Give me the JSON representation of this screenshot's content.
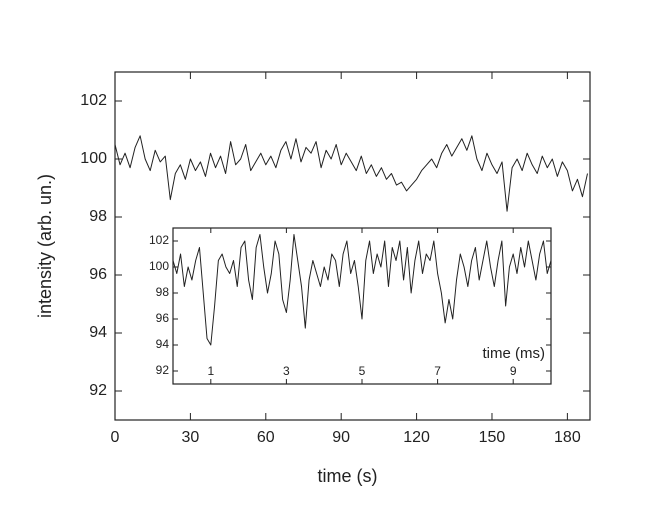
{
  "chart_data": [
    {
      "type": "line",
      "xlabel": "time (s)",
      "ylabel": "intensity (arb. un.)",
      "color": "#222222",
      "x": [
        0,
        2,
        4,
        6,
        8,
        10,
        12,
        14,
        16,
        18,
        20,
        22,
        24,
        26,
        28,
        30,
        32,
        34,
        36,
        38,
        40,
        42,
        44,
        46,
        48,
        50,
        52,
        54,
        56,
        58,
        60,
        62,
        64,
        66,
        68,
        70,
        72,
        74,
        76,
        78,
        80,
        82,
        84,
        86,
        88,
        90,
        92,
        94,
        96,
        98,
        100,
        102,
        104,
        106,
        108,
        110,
        112,
        114,
        116,
        118,
        120,
        122,
        124,
        126,
        128,
        130,
        132,
        134,
        136,
        138,
        140,
        142,
        144,
        146,
        148,
        150,
        152,
        154,
        156,
        158,
        160,
        162,
        164,
        166,
        168,
        170,
        172,
        174,
        176,
        178,
        180,
        182,
        184,
        186,
        188
      ],
      "values": [
        100.5,
        99.8,
        100.2,
        99.7,
        100.4,
        100.8,
        100.0,
        99.6,
        100.3,
        99.9,
        100.1,
        98.6,
        99.5,
        99.8,
        99.3,
        100.0,
        99.6,
        99.9,
        99.4,
        100.2,
        99.7,
        100.1,
        99.5,
        100.6,
        99.8,
        100.0,
        100.5,
        99.6,
        99.9,
        100.2,
        99.8,
        100.1,
        99.7,
        100.3,
        100.6,
        100.0,
        100.7,
        99.9,
        100.4,
        100.2,
        100.6,
        99.7,
        100.3,
        100.0,
        100.5,
        99.8,
        100.2,
        99.9,
        99.6,
        100.1,
        99.5,
        99.8,
        99.4,
        99.7,
        99.3,
        99.5,
        99.1,
        99.2,
        98.9,
        99.1,
        99.3,
        99.6,
        99.8,
        100.0,
        99.7,
        100.2,
        100.5,
        100.1,
        100.4,
        100.7,
        100.3,
        100.8,
        100.0,
        99.6,
        100.2,
        99.8,
        99.5,
        99.9,
        98.2,
        99.7,
        100.0,
        99.6,
        100.2,
        99.8,
        99.5,
        100.1,
        99.7,
        100.0,
        99.4,
        99.9,
        99.6,
        98.9,
        99.3,
        98.7,
        99.5
      ],
      "xlim": [
        0,
        189
      ],
      "xticks": [
        0,
        30,
        60,
        90,
        120,
        150,
        180
      ],
      "ylim": [
        91,
        103
      ],
      "yticks": [
        92,
        94,
        96,
        98,
        100,
        102
      ]
    },
    {
      "type": "line",
      "xlabel": "time (ms)",
      "color": "#222222",
      "x": [
        0,
        0.1,
        0.2,
        0.3,
        0.4,
        0.5,
        0.6,
        0.7,
        0.8,
        0.9,
        1,
        1.1,
        1.2,
        1.3,
        1.4,
        1.5,
        1.6,
        1.7,
        1.8,
        1.9,
        2,
        2.1,
        2.2,
        2.3,
        2.4,
        2.5,
        2.6,
        2.7,
        2.8,
        2.9,
        3,
        3.1,
        3.2,
        3.3,
        3.4,
        3.5,
        3.6,
        3.7,
        3.8,
        3.9,
        4,
        4.1,
        4.2,
        4.3,
        4.4,
        4.5,
        4.6,
        4.7,
        4.8,
        4.9,
        5,
        5.1,
        5.2,
        5.3,
        5.4,
        5.5,
        5.6,
        5.7,
        5.8,
        5.9,
        6,
        6.1,
        6.2,
        6.3,
        6.4,
        6.5,
        6.6,
        6.7,
        6.8,
        6.9,
        7,
        7.1,
        7.2,
        7.3,
        7.4,
        7.5,
        7.6,
        7.7,
        7.8,
        7.9,
        8,
        8.1,
        8.2,
        8.3,
        8.4,
        8.5,
        8.6,
        8.7,
        8.8,
        8.9,
        9,
        9.1,
        9.2,
        9.3,
        9.4,
        9.5,
        9.6,
        9.7,
        9.8,
        9.9,
        10
      ],
      "values": [
        100.5,
        99.5,
        101.0,
        98.5,
        100.0,
        99.0,
        100.5,
        101.5,
        98.0,
        94.5,
        94.0,
        97.0,
        100.5,
        101.0,
        100.0,
        99.5,
        100.5,
        98.5,
        101.5,
        102.0,
        99.0,
        97.5,
        101.5,
        102.5,
        100.0,
        98.0,
        99.5,
        102.0,
        101.0,
        97.5,
        96.5,
        99.0,
        102.5,
        100.5,
        98.5,
        95.3,
        99.0,
        100.5,
        99.5,
        98.5,
        100.0,
        99.0,
        101.0,
        100.5,
        98.5,
        101.0,
        102.0,
        99.5,
        100.5,
        98.5,
        96.0,
        100.5,
        102.0,
        99.5,
        101.0,
        100.0,
        102.0,
        98.5,
        101.5,
        100.5,
        102.0,
        99.0,
        101.5,
        98.0,
        100.5,
        102.0,
        99.5,
        101.0,
        100.5,
        102.0,
        99.5,
        98.0,
        95.7,
        97.5,
        96.0,
        99.0,
        101.0,
        100.0,
        98.5,
        100.5,
        101.5,
        99.0,
        100.5,
        102.0,
        100.0,
        98.5,
        100.5,
        102.0,
        97.0,
        100.0,
        101.0,
        99.5,
        101.5,
        100.0,
        102.0,
        100.5,
        99.0,
        101.0,
        102.0,
        99.5,
        100.5
      ],
      "xlim": [
        0,
        10
      ],
      "xticks": [
        1,
        3,
        5,
        7,
        9
      ],
      "ylim": [
        91,
        103
      ],
      "yticks": [
        92,
        94,
        96,
        98,
        100,
        102
      ]
    }
  ]
}
